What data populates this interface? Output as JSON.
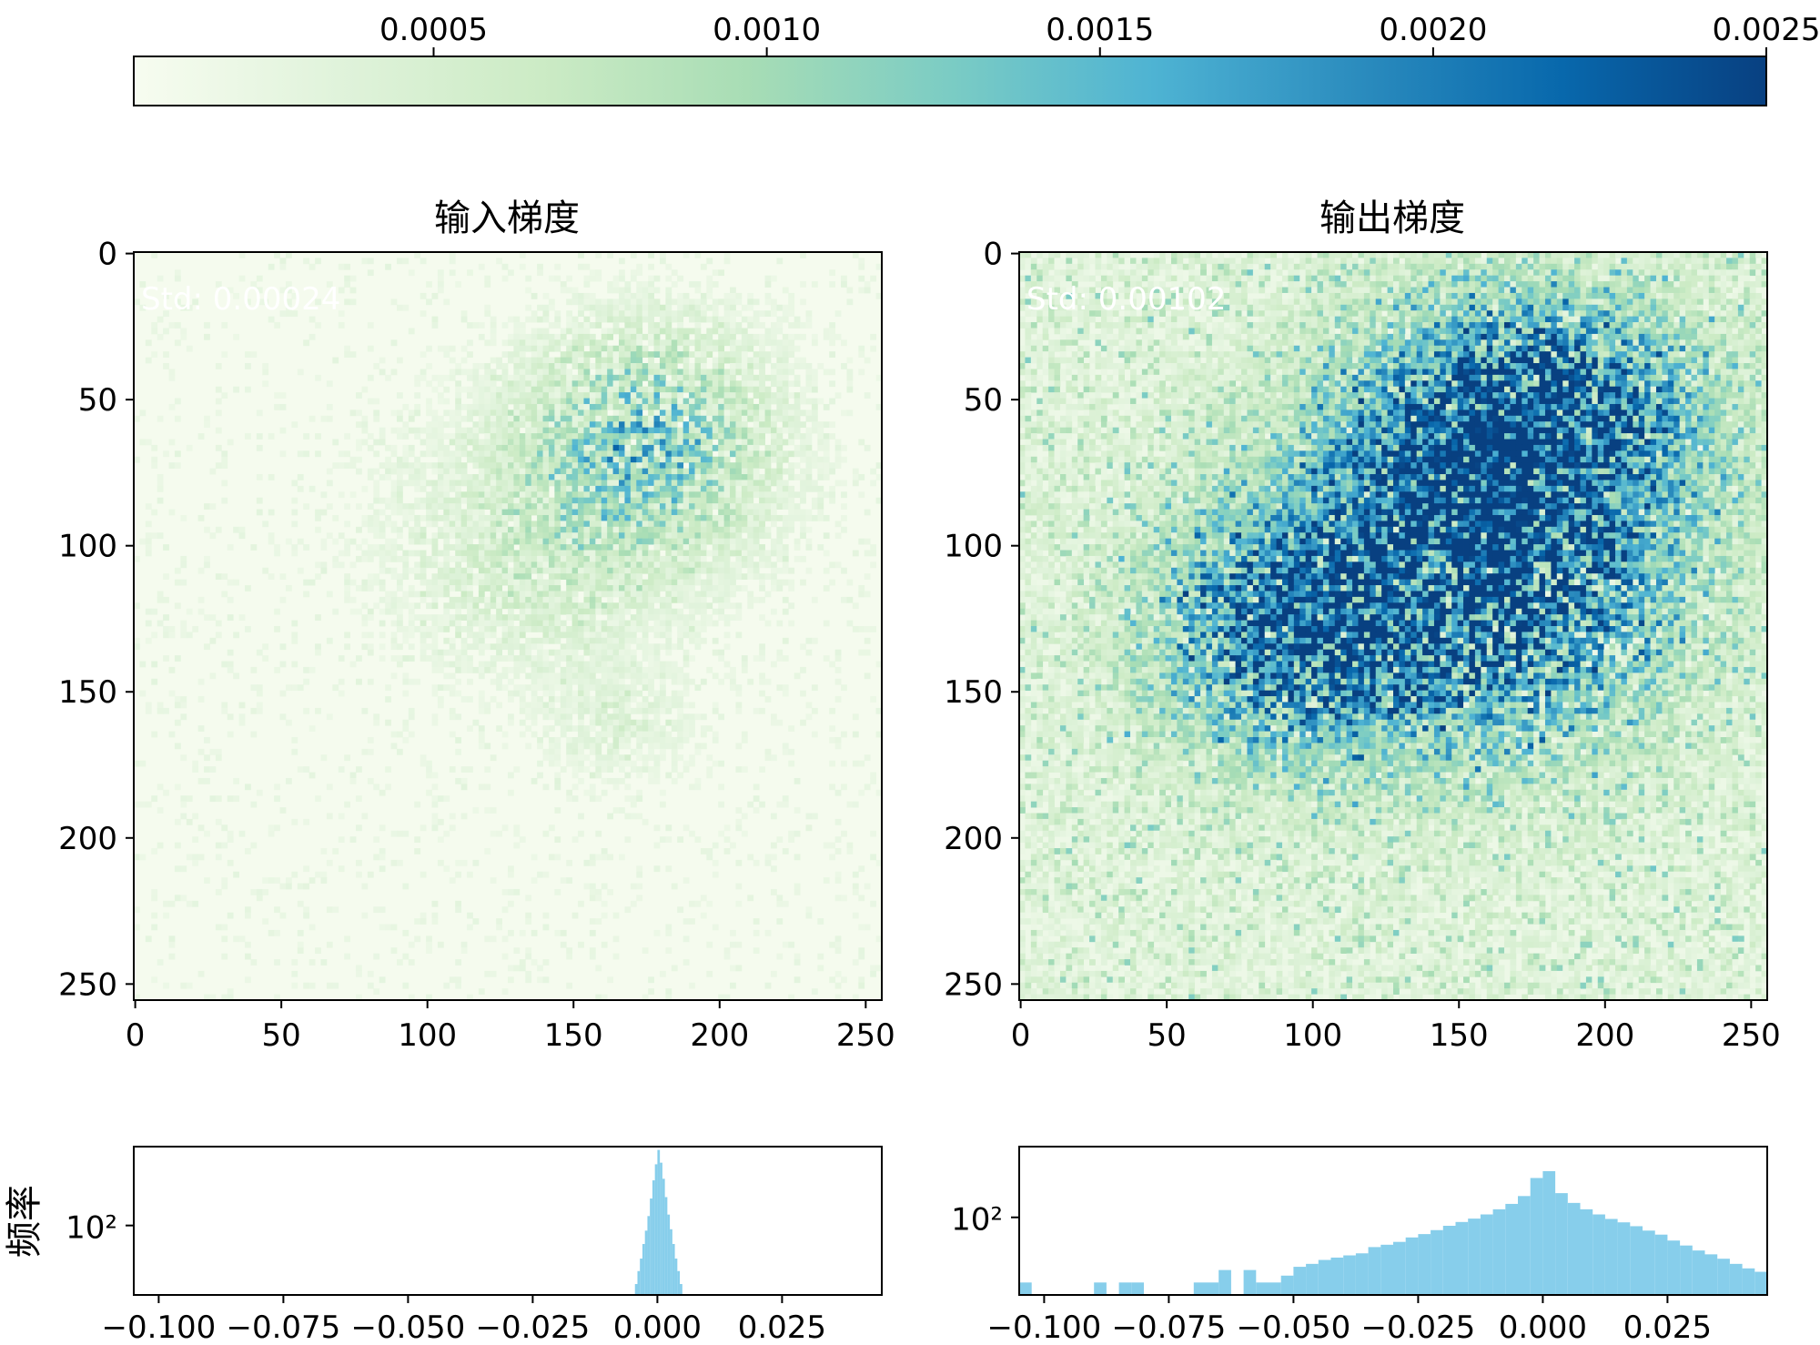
{
  "colorbar": {
    "ticks": [
      {
        "value": 0.0005,
        "label": "0.0005"
      },
      {
        "value": 0.001,
        "label": "0.0010"
      },
      {
        "value": 0.0015,
        "label": "0.0015"
      },
      {
        "value": 0.002,
        "label": "0.0020"
      },
      {
        "value": 0.0025,
        "label": "0.0025"
      }
    ],
    "range": [
      5e-05,
      0.0025
    ],
    "colormap": [
      "#f7fcf0",
      "#e0f3db",
      "#ccebc5",
      "#a8ddb5",
      "#7bccc4",
      "#4eb3d3",
      "#2b8cbe",
      "#0868ac",
      "#084081"
    ]
  },
  "chart_data": [
    {
      "type": "heatmap",
      "title": "输入梯度",
      "annotation": "Std: 0.00024",
      "xlim": [
        0,
        255
      ],
      "ylim": [
        255,
        0
      ],
      "xticks": [
        0,
        50,
        100,
        150,
        200,
        250
      ],
      "yticks": [
        0,
        50,
        100,
        150,
        200,
        250
      ],
      "blobs": [
        {
          "cx": 175,
          "cy": 65,
          "rx": 50,
          "ry": 45,
          "intensity": 0.55
        },
        {
          "cx": 140,
          "cy": 100,
          "rx": 60,
          "ry": 50,
          "intensity": 0.22
        },
        {
          "cx": 165,
          "cy": 160,
          "rx": 30,
          "ry": 25,
          "intensity": 0.12
        }
      ],
      "background_intensity": 0.04,
      "noise_level": 0.08
    },
    {
      "type": "heatmap",
      "title": "输出梯度",
      "annotation": "Std: 0.00102",
      "xlim": [
        0,
        255
      ],
      "ylim": [
        255,
        0
      ],
      "xticks": [
        0,
        50,
        100,
        150,
        200,
        250
      ],
      "yticks": [
        0,
        50,
        100,
        150,
        200,
        250
      ],
      "blobs": [
        {
          "cx": 155,
          "cy": 110,
          "rx": 85,
          "ry": 75,
          "intensity": 1.0
        },
        {
          "cx": 175,
          "cy": 55,
          "rx": 70,
          "ry": 50,
          "intensity": 0.9
        },
        {
          "cx": 90,
          "cy": 130,
          "rx": 55,
          "ry": 50,
          "intensity": 0.75
        }
      ],
      "background_intensity": 0.18,
      "noise_level": 0.35
    },
    {
      "type": "bar",
      "subtype": "histogram",
      "ylabel": "频率",
      "yscale": "log",
      "yticks": [
        {
          "value": 100,
          "label": "10²"
        }
      ],
      "ylim": [
        5,
        3000
      ],
      "xlim": [
        -0.105,
        0.045
      ],
      "xticks": [
        -0.1,
        -0.075,
        -0.05,
        -0.025,
        0.0,
        0.025
      ],
      "xticklabels": [
        "−0.100",
        "−0.075",
        "−0.050",
        "−0.025",
        "0.000",
        "0.025"
      ],
      "bin_width": 0.0005,
      "bins": [
        {
          "x": -0.0045,
          "count": 8
        },
        {
          "x": -0.004,
          "count": 14
        },
        {
          "x": -0.0035,
          "count": 24
        },
        {
          "x": -0.003,
          "count": 45
        },
        {
          "x": -0.0025,
          "count": 80
        },
        {
          "x": -0.002,
          "count": 150
        },
        {
          "x": -0.0015,
          "count": 320
        },
        {
          "x": -0.001,
          "count": 700
        },
        {
          "x": -0.0005,
          "count": 1400
        },
        {
          "x": 0.0,
          "count": 2600
        },
        {
          "x": 0.0005,
          "count": 1500
        },
        {
          "x": 0.001,
          "count": 750
        },
        {
          "x": 0.0015,
          "count": 340
        },
        {
          "x": 0.002,
          "count": 160
        },
        {
          "x": 0.0025,
          "count": 85
        },
        {
          "x": 0.003,
          "count": 45
        },
        {
          "x": 0.0035,
          "count": 24
        },
        {
          "x": 0.004,
          "count": 14
        },
        {
          "x": 0.0045,
          "count": 8
        }
      ],
      "color": "#87ceeb"
    },
    {
      "type": "bar",
      "subtype": "histogram",
      "ylabel": "",
      "yscale": "log",
      "yticks": [
        {
          "value": 100,
          "label": "10²"
        }
      ],
      "ylim": [
        8,
        1000
      ],
      "xlim": [
        -0.105,
        0.045
      ],
      "xticks": [
        -0.1,
        -0.075,
        -0.05,
        -0.025,
        0.0,
        0.025
      ],
      "xticklabels": [
        "−0.100",
        "−0.075",
        "−0.050",
        "−0.025",
        "0.000",
        "0.025"
      ],
      "bin_width": 0.0025,
      "bins": [
        {
          "x": -0.105,
          "count": 12
        },
        {
          "x": -0.1025,
          "count": 0
        },
        {
          "x": -0.1,
          "count": 0
        },
        {
          "x": -0.0975,
          "count": 0
        },
        {
          "x": -0.095,
          "count": 0
        },
        {
          "x": -0.0925,
          "count": 0
        },
        {
          "x": -0.09,
          "count": 12
        },
        {
          "x": -0.0875,
          "count": 0
        },
        {
          "x": -0.085,
          "count": 12
        },
        {
          "x": -0.0825,
          "count": 12
        },
        {
          "x": -0.08,
          "count": 0
        },
        {
          "x": -0.0775,
          "count": 0
        },
        {
          "x": -0.075,
          "count": 0
        },
        {
          "x": -0.0725,
          "count": 0
        },
        {
          "x": -0.07,
          "count": 12
        },
        {
          "x": -0.0675,
          "count": 12
        },
        {
          "x": -0.065,
          "count": 18
        },
        {
          "x": -0.0625,
          "count": 0
        },
        {
          "x": -0.06,
          "count": 18
        },
        {
          "x": -0.0575,
          "count": 12
        },
        {
          "x": -0.055,
          "count": 12
        },
        {
          "x": -0.0525,
          "count": 15
        },
        {
          "x": -0.05,
          "count": 20
        },
        {
          "x": -0.0475,
          "count": 22
        },
        {
          "x": -0.045,
          "count": 25
        },
        {
          "x": -0.0425,
          "count": 27
        },
        {
          "x": -0.04,
          "count": 29
        },
        {
          "x": -0.0375,
          "count": 31
        },
        {
          "x": -0.035,
          "count": 38
        },
        {
          "x": -0.0325,
          "count": 41
        },
        {
          "x": -0.03,
          "count": 45
        },
        {
          "x": -0.0275,
          "count": 52
        },
        {
          "x": -0.025,
          "count": 58
        },
        {
          "x": -0.0225,
          "count": 66
        },
        {
          "x": -0.02,
          "count": 76
        },
        {
          "x": -0.0175,
          "count": 86
        },
        {
          "x": -0.015,
          "count": 96
        },
        {
          "x": -0.0125,
          "count": 110
        },
        {
          "x": -0.01,
          "count": 130
        },
        {
          "x": -0.0075,
          "count": 155
        },
        {
          "x": -0.005,
          "count": 200
        },
        {
          "x": -0.0025,
          "count": 360
        },
        {
          "x": 0.0,
          "count": 450
        },
        {
          "x": 0.0025,
          "count": 220
        },
        {
          "x": 0.005,
          "count": 160
        },
        {
          "x": 0.0075,
          "count": 130
        },
        {
          "x": 0.01,
          "count": 110
        },
        {
          "x": 0.0125,
          "count": 95
        },
        {
          "x": 0.015,
          "count": 85
        },
        {
          "x": 0.0175,
          "count": 75
        },
        {
          "x": 0.02,
          "count": 65
        },
        {
          "x": 0.0225,
          "count": 57
        },
        {
          "x": 0.025,
          "count": 47
        },
        {
          "x": 0.0275,
          "count": 40
        },
        {
          "x": 0.03,
          "count": 34
        },
        {
          "x": 0.0325,
          "count": 30
        },
        {
          "x": 0.035,
          "count": 26
        },
        {
          "x": 0.0375,
          "count": 22
        },
        {
          "x": 0.04,
          "count": 19
        },
        {
          "x": 0.0425,
          "count": 17
        }
      ],
      "color": "#87ceeb"
    }
  ]
}
